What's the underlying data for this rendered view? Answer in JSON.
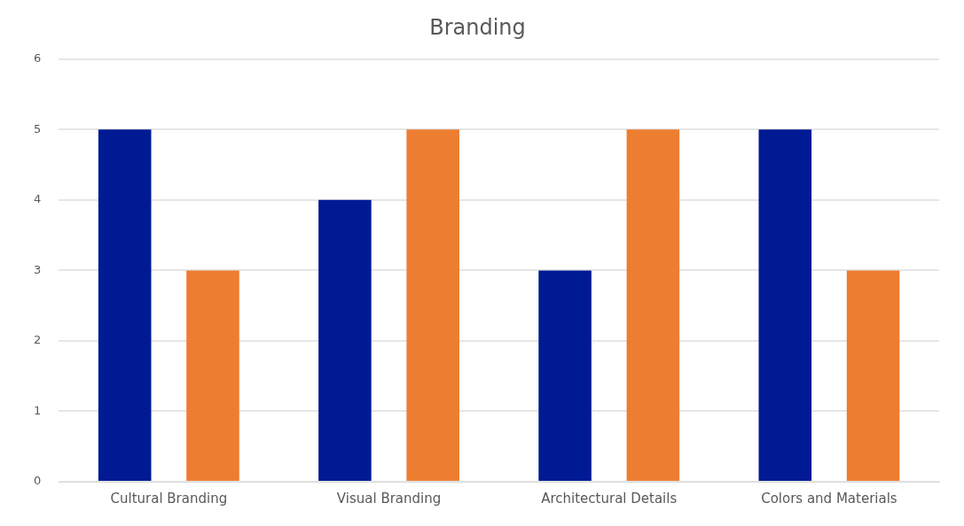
{
  "chart_data": {
    "type": "bar",
    "title": "Branding",
    "categories": [
      "Cultural Branding",
      "Visual Branding",
      "Architectural Details",
      "Colors and Materials"
    ],
    "series": [
      {
        "color": "#001a94",
        "values": [
          5,
          4,
          3,
          5
        ]
      },
      {
        "color": "#ed7d31",
        "values": [
          3,
          5,
          5,
          3
        ]
      }
    ],
    "ylim": [
      0,
      6
    ],
    "yticks": [
      0,
      1,
      2,
      3,
      4,
      5,
      6
    ],
    "grid": "y",
    "legend": false
  }
}
